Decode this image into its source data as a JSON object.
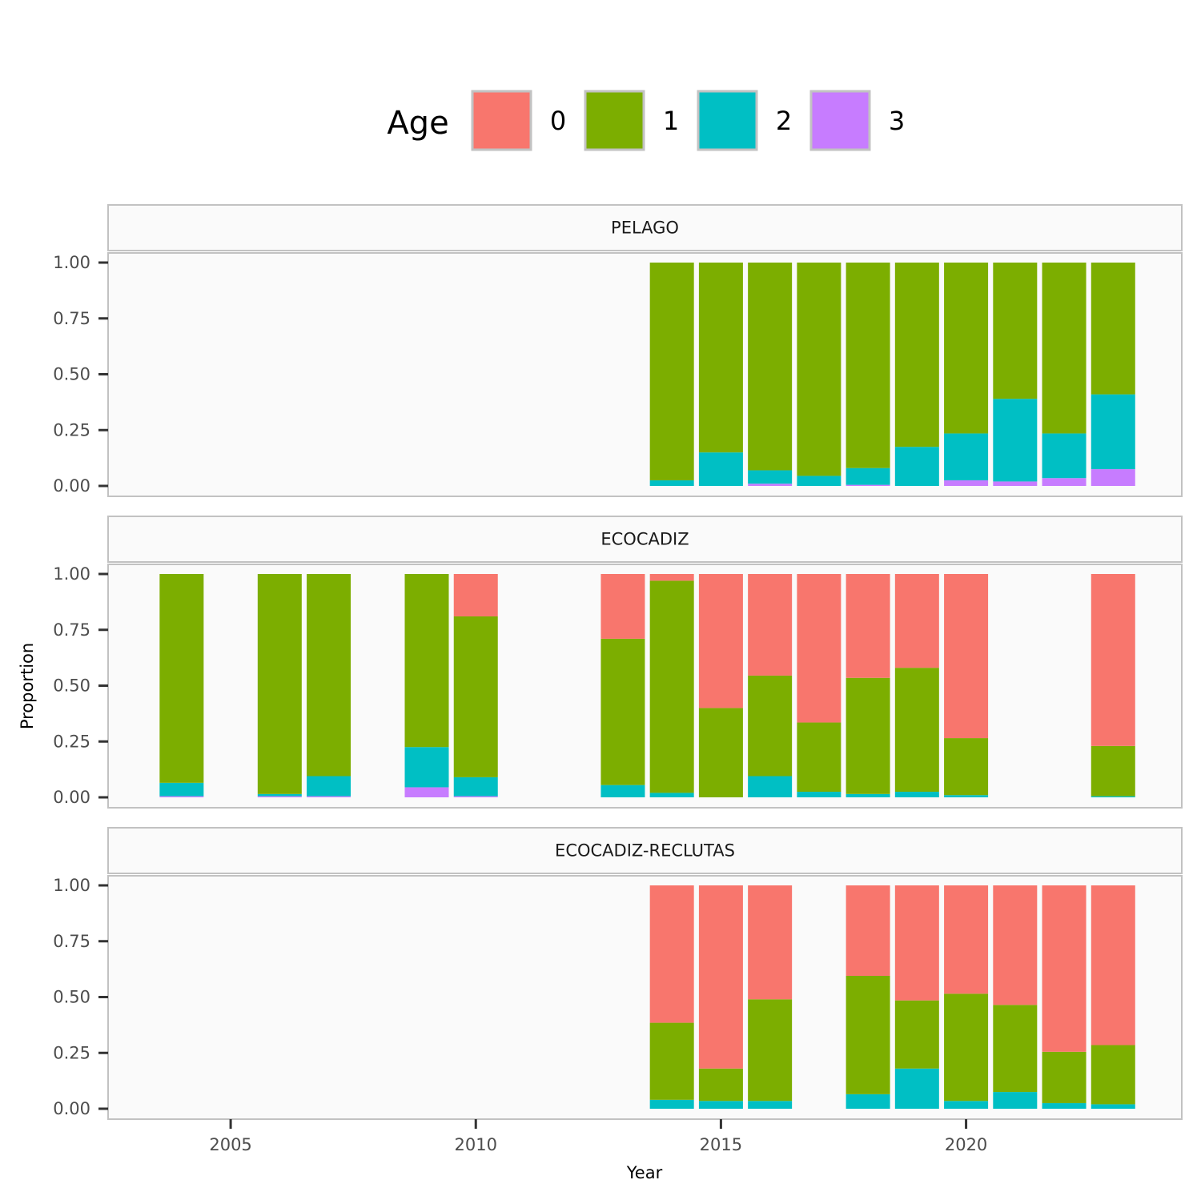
{
  "chart_data": {
    "type": "bar",
    "stacked": true,
    "facet_layout": "vertical",
    "xlabel": "Year",
    "ylabel": "Proportion",
    "xlim": [
      2002.5,
      2024.4
    ],
    "ylim": [
      0,
      1.05
    ],
    "x_ticks": [
      2005,
      2010,
      2015,
      2020
    ],
    "y_ticks": [
      "0.00",
      "0.25",
      "0.50",
      "0.75",
      "1.00"
    ],
    "grid": false,
    "legend": {
      "title": "Age",
      "position": "top",
      "entries": [
        {
          "label": "0",
          "color": "#F8766D"
        },
        {
          "label": "1",
          "color": "#7CAE00"
        },
        {
          "label": "2",
          "color": "#00BFC4"
        },
        {
          "label": "3",
          "color": "#C77CFF"
        }
      ]
    },
    "panels": [
      {
        "title": "PELAGO",
        "years": [
          2014,
          2015,
          2016,
          2017,
          2018,
          2019,
          2020,
          2021,
          2022,
          2023
        ],
        "series": [
          {
            "name": "0",
            "values": [
              0,
              0,
              0,
              0,
              0,
              0,
              0,
              0,
              0,
              0
            ]
          },
          {
            "name": "1",
            "values": [
              0.975,
              0.85,
              0.93,
              0.955,
              0.92,
              0.825,
              0.765,
              0.61,
              0.765,
              0.59
            ]
          },
          {
            "name": "2",
            "values": [
              0.025,
              0.15,
              0.06,
              0.045,
              0.075,
              0.175,
              0.21,
              0.37,
              0.2,
              0.335
            ]
          },
          {
            "name": "3",
            "values": [
              0,
              0,
              0.01,
              0,
              0.005,
              0,
              0.025,
              0.02,
              0.035,
              0.075
            ]
          }
        ]
      },
      {
        "title": "ECOCADIZ",
        "years": [
          2004,
          2006,
          2007,
          2009,
          2010,
          2013,
          2014,
          2015,
          2016,
          2017,
          2018,
          2019,
          2020,
          2023
        ],
        "series": [
          {
            "name": "0",
            "values": [
              0,
              0,
              0,
              0,
              0.19,
              0.29,
              0.03,
              0.6,
              0.455,
              0.665,
              0.465,
              0.42,
              0.735,
              0.77
            ]
          },
          {
            "name": "1",
            "values": [
              0.935,
              0.985,
              0.905,
              0.775,
              0.72,
              0.655,
              0.95,
              0.4,
              0.45,
              0.31,
              0.52,
              0.555,
              0.255,
              0.225
            ]
          },
          {
            "name": "2",
            "values": [
              0.06,
              0.01,
              0.09,
              0.18,
              0.085,
              0.055,
              0.02,
              0,
              0.095,
              0.025,
              0.015,
              0.025,
              0.01,
              0.005
            ]
          },
          {
            "name": "3",
            "values": [
              0.005,
              0.005,
              0.005,
              0.045,
              0.005,
              0,
              0,
              0,
              0,
              0,
              0,
              0,
              0,
              0
            ]
          }
        ]
      },
      {
        "title": "ECOCADIZ-RECLUTAS",
        "years": [
          2014,
          2015,
          2016,
          2018,
          2019,
          2020,
          2021,
          2022,
          2023
        ],
        "series": [
          {
            "name": "0",
            "values": [
              0.615,
              0.82,
              0.51,
              0.405,
              0.515,
              0.485,
              0.535,
              0.745,
              0.715
            ]
          },
          {
            "name": "1",
            "values": [
              0.345,
              0.145,
              0.455,
              0.53,
              0.305,
              0.48,
              0.39,
              0.23,
              0.265
            ]
          },
          {
            "name": "2",
            "values": [
              0.04,
              0.035,
              0.035,
              0.065,
              0.18,
              0.035,
              0.075,
              0.025,
              0.02
            ]
          },
          {
            "name": "3",
            "values": [
              0,
              0,
              0,
              0,
              0,
              0,
              0,
              0,
              0
            ]
          }
        ]
      }
    ]
  }
}
